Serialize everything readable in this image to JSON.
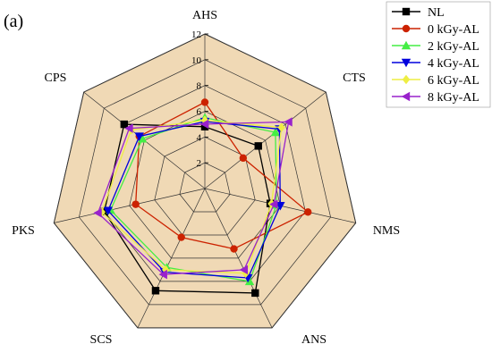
{
  "panel_label": "(a)",
  "chart_data": {
    "type": "radar",
    "axes": [
      "AHS",
      "CTS",
      "NMS",
      "ANS",
      "SCS",
      "PKS",
      "CPS"
    ],
    "rlim": [
      0,
      12
    ],
    "ticks": [
      2,
      4,
      6,
      8,
      10,
      12
    ],
    "grid": true,
    "legend_position": "top-right",
    "series": [
      {
        "name": "NL",
        "values": [
          4.8,
          5.3,
          5.2,
          9.0,
          8.8,
          8.0,
          8.0
        ],
        "color": "#000000",
        "marker": "square"
      },
      {
        "name": "0 kGy-AL",
        "values": [
          6.7,
          3.8,
          8.2,
          5.2,
          4.2,
          5.5,
          6.5
        ],
        "color": "#cc2200",
        "marker": "circle"
      },
      {
        "name": "2 kGy-AL",
        "values": [
          5.5,
          7.0,
          5.7,
          8.0,
          6.8,
          7.5,
          6.2
        ],
        "color": "#44ee44",
        "marker": "triangle-up"
      },
      {
        "name": "4 kGy-AL",
        "values": [
          5.2,
          7.4,
          6.0,
          7.7,
          7.2,
          7.7,
          6.5
        ],
        "color": "#0000dd",
        "marker": "triangle-down"
      },
      {
        "name": "6 kGy-AL",
        "values": [
          5.3,
          7.6,
          5.3,
          7.3,
          7.0,
          8.2,
          7.3
        ],
        "color": "#eeee44",
        "marker": "diamond"
      },
      {
        "name": "8 kGy-AL",
        "values": [
          5.0,
          8.3,
          5.5,
          7.0,
          7.4,
          8.5,
          7.5
        ],
        "color": "#9922cc",
        "marker": "triangle-left"
      }
    ]
  }
}
